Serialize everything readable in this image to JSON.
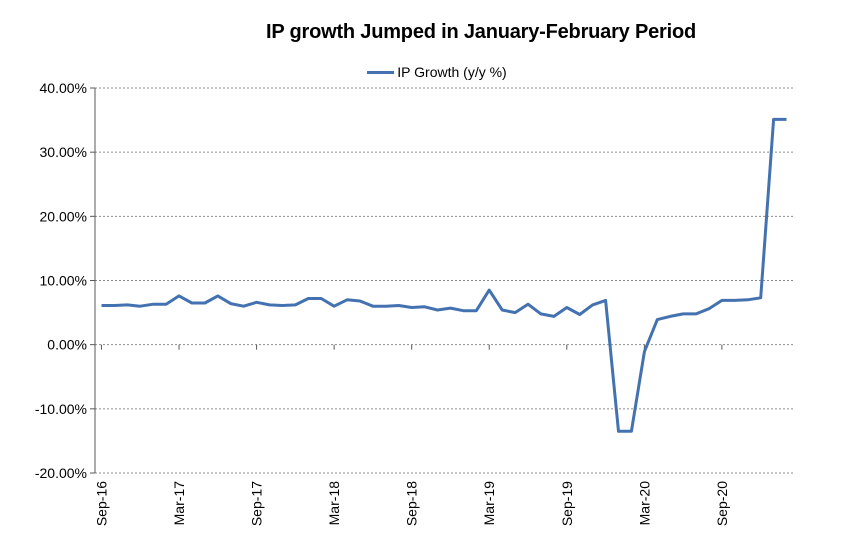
{
  "title": "IP growth Jumped in January-February Period",
  "legend": {
    "label": "IP Growth (y/y %)"
  },
  "chart_data": {
    "type": "line",
    "title": "IP growth Jumped in January-February Period",
    "x": [
      "Sep-16",
      "Oct-16",
      "Nov-16",
      "Dec-16",
      "Jan-17",
      "Feb-17",
      "Mar-17",
      "Apr-17",
      "May-17",
      "Jun-17",
      "Jul-17",
      "Aug-17",
      "Sep-17",
      "Oct-17",
      "Nov-17",
      "Dec-17",
      "Jan-18",
      "Feb-18",
      "Mar-18",
      "Apr-18",
      "May-18",
      "Jun-18",
      "Jul-18",
      "Aug-18",
      "Sep-18",
      "Oct-18",
      "Nov-18",
      "Dec-18",
      "Jan-19",
      "Feb-19",
      "Mar-19",
      "Apr-19",
      "May-19",
      "Jun-19",
      "Jul-19",
      "Aug-19",
      "Sep-19",
      "Oct-19",
      "Nov-19",
      "Dec-19",
      "Jan-20",
      "Feb-20",
      "Mar-20",
      "Apr-20",
      "May-20",
      "Jun-20",
      "Jul-20",
      "Aug-20",
      "Sep-20",
      "Oct-20",
      "Nov-20",
      "Dec-20",
      "Jan-21",
      "Feb-21"
    ],
    "series": [
      {
        "name": "IP Growth (y/y %)",
        "color": "#4472B0",
        "values": [
          6.1,
          6.1,
          6.2,
          6.0,
          6.3,
          6.3,
          7.6,
          6.5,
          6.5,
          7.6,
          6.4,
          6.0,
          6.6,
          6.2,
          6.1,
          6.2,
          7.2,
          7.2,
          6.0,
          7.0,
          6.8,
          6.0,
          6.0,
          6.1,
          5.8,
          5.9,
          5.4,
          5.7,
          5.3,
          5.3,
          8.5,
          5.4,
          5.0,
          6.3,
          4.8,
          4.4,
          5.8,
          4.7,
          6.2,
          6.9,
          -13.5,
          -13.5,
          -1.1,
          3.9,
          4.4,
          4.8,
          4.8,
          5.6,
          6.9,
          6.9,
          7.0,
          7.3,
          35.1,
          35.1
        ]
      }
    ],
    "ylim": [
      -20,
      40
    ],
    "yticks": [
      {
        "value": 40,
        "label": "40.00%"
      },
      {
        "value": 30,
        "label": "30.00%"
      },
      {
        "value": 20,
        "label": "20.00%"
      },
      {
        "value": 10,
        "label": "10.00%"
      },
      {
        "value": 0,
        "label": "0.00%"
      },
      {
        "value": -10,
        "label": "-10.00%"
      },
      {
        "value": -20,
        "label": "-20.00%"
      }
    ],
    "xtick_every": 6,
    "xtick_labels_visible": [
      "Sep-16",
      "Mar-17",
      "Sep-17",
      "Mar-18",
      "Sep-18",
      "Mar-19",
      "Sep-19",
      "Mar-20",
      "Sep-20"
    ],
    "grid": {
      "horizontal": true,
      "style": "dashed",
      "color": "#8C8C8C"
    },
    "axis_color": "#595959",
    "legend_position": "top-center",
    "x_labels_rotation_deg": -90
  }
}
